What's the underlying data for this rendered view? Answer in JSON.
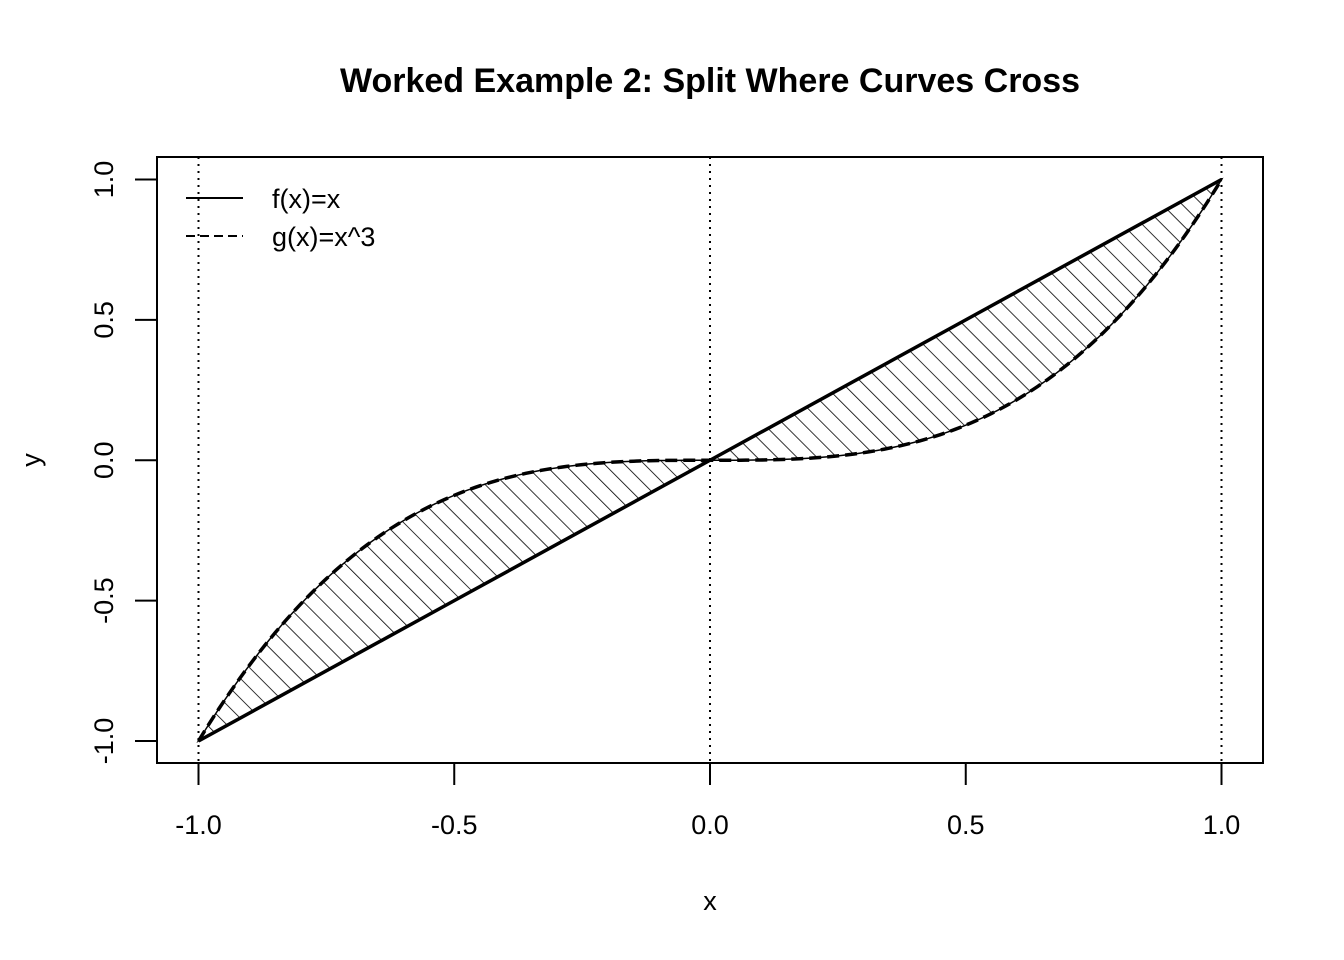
{
  "chart_data": {
    "type": "line",
    "title": "Worked Example 2: Split Where Curves Cross",
    "xlabel": "x",
    "ylabel": "y",
    "xlim": [
      -1.08,
      1.08
    ],
    "ylim": [
      -1.08,
      1.08
    ],
    "x_ticks": [
      -1.0,
      -0.5,
      0.0,
      0.5,
      1.0
    ],
    "x_tick_labels": [
      "-1.0",
      "-0.5",
      "0.0",
      "0.5",
      "1.0"
    ],
    "y_ticks": [
      -1.0,
      -0.5,
      0.0,
      0.5,
      1.0
    ],
    "y_tick_labels": [
      "-1.0",
      "-0.5",
      "0.0",
      "0.5",
      "1.0"
    ],
    "grid": false,
    "legend_position": "top-left",
    "series": [
      {
        "name": "f(x)=x",
        "line_style": "solid",
        "color": "#000000",
        "x": [
          -1.0,
          -0.5,
          0.0,
          0.5,
          1.0
        ],
        "y": [
          -1.0,
          -0.5,
          0.0,
          0.5,
          1.0
        ]
      },
      {
        "name": "g(x)=x^3",
        "line_style": "dashed",
        "color": "#000000",
        "x": [
          -1.0,
          -0.9,
          -0.8,
          -0.7,
          -0.6,
          -0.5,
          -0.4,
          -0.3,
          -0.2,
          -0.1,
          0.0,
          0.1,
          0.2,
          0.3,
          0.4,
          0.5,
          0.6,
          0.7,
          0.8,
          0.9,
          1.0
        ],
        "y": [
          -1.0,
          -0.729,
          -0.512,
          -0.343,
          -0.216,
          -0.125,
          -0.064,
          -0.027,
          -0.008,
          -0.001,
          0.0,
          0.001,
          0.008,
          0.027,
          0.064,
          0.125,
          0.216,
          0.343,
          0.512,
          0.729,
          1.0
        ]
      }
    ],
    "vertical_lines": [
      -1.0,
      0.0,
      1.0
    ],
    "shaded_regions": [
      {
        "from": -1.0,
        "to": 0.0,
        "between": [
          "f(x)=x",
          "g(x)=x^3"
        ],
        "fill": "hatched"
      },
      {
        "from": 0.0,
        "to": 1.0,
        "between": [
          "f(x)=x",
          "g(x)=x^3"
        ],
        "fill": "hatched"
      }
    ]
  }
}
